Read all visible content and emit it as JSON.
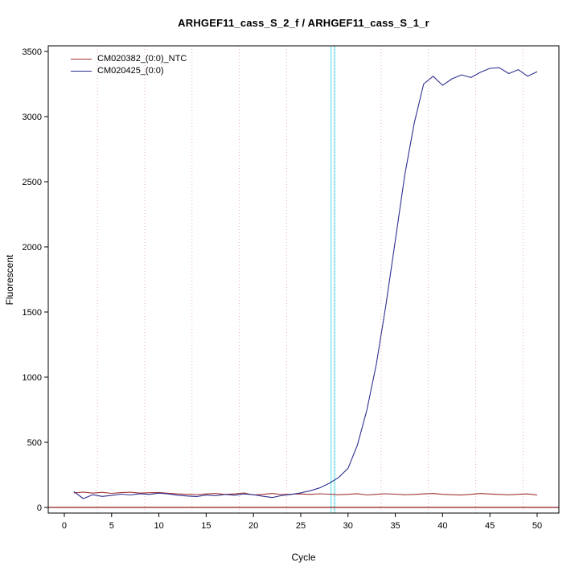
{
  "chart_data": {
    "type": "line",
    "title": "ARHGEF11_cass_S_2_f / ARHGEF11_cass_S_1_r",
    "xlabel": "Cycle",
    "ylabel": "Fluorescent",
    "xlim": [
      0,
      50
    ],
    "ylim": [
      0,
      3500
    ],
    "x_ticks": [
      0,
      5,
      10,
      15,
      20,
      25,
      30,
      35,
      40,
      45,
      50
    ],
    "y_ticks": [
      0,
      500,
      1000,
      1500,
      2000,
      2500,
      3000,
      3500
    ],
    "grid": "dotted-vertical",
    "grid_x": [
      3.5,
      8.5,
      13.5,
      18.5,
      23.5,
      28.5,
      33.5,
      38.5,
      43.5,
      48.5
    ],
    "grid_color": "#e2b0b0",
    "threshold_vlines": {
      "x": [
        28.2,
        28.6
      ],
      "color": "#7ee7f0"
    },
    "baseline_hline": {
      "y": 0,
      "color": "#8b1a1a"
    },
    "legend_position": "top-left",
    "x": [
      1,
      2,
      3,
      4,
      5,
      6,
      7,
      8,
      9,
      10,
      11,
      12,
      13,
      14,
      15,
      16,
      17,
      18,
      19,
      20,
      21,
      22,
      23,
      24,
      25,
      26,
      27,
      28,
      29,
      30,
      31,
      32,
      33,
      34,
      35,
      36,
      37,
      38,
      39,
      40,
      41,
      42,
      43,
      44,
      45,
      46,
      47,
      48,
      49,
      50
    ],
    "series": [
      {
        "name": "CM020382_(0:0)_NTC",
        "color": "#a03434",
        "values": [
          112,
          118,
          110,
          116,
          108,
          114,
          117,
          110,
          113,
          115,
          109,
          104,
          101,
          99,
          104,
          107,
          100,
          104,
          111,
          96,
          101,
          107,
          99,
          102,
          104,
          100,
          105,
          102,
          98,
          101,
          106,
          96,
          101,
          105,
          102,
          98,
          100,
          104,
          107,
          101,
          98,
          95,
          101,
          107,
          103,
          100,
          97,
          101,
          104,
          95
        ]
      },
      {
        "name": "CM020425_(0:0)",
        "color": "#2f2f8f",
        "values": [
          122,
          68,
          98,
          85,
          92,
          102,
          96,
          106,
          100,
          110,
          104,
          94,
          88,
          84,
          95,
          90,
          100,
          94,
          104,
          98,
          86,
          76,
          92,
          100,
          112,
          128,
          150,
          185,
          230,
          300,
          480,
          750,
          1100,
          1550,
          2050,
          2550,
          2950,
          3250,
          3310,
          3240,
          3290,
          3320,
          3300,
          3340,
          3370,
          3375,
          3330,
          3360,
          3310,
          3345
        ]
      }
    ]
  }
}
